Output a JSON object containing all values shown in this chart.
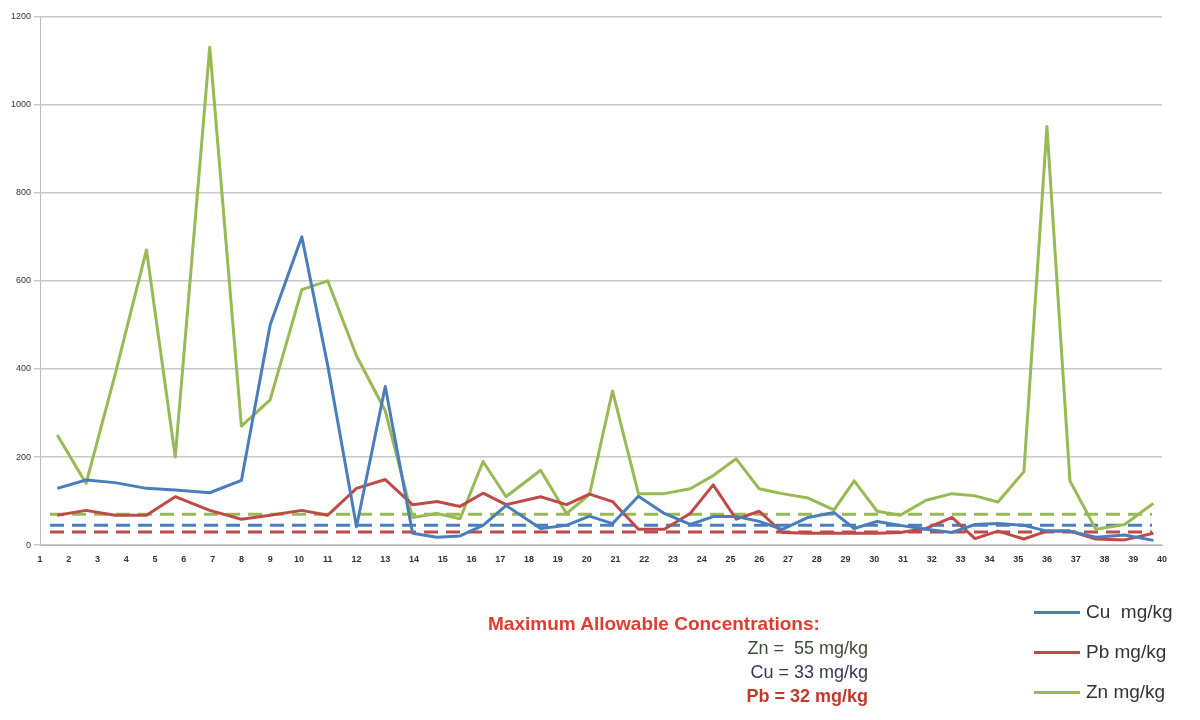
{
  "chart_data": {
    "type": "line",
    "x": [
      1.6,
      2.6,
      3.6,
      4.7,
      5.7,
      6.9,
      8.0,
      9.0,
      10.1,
      11.0,
      12.0,
      13.0,
      13.95,
      14.8,
      15.6,
      16.4,
      17.2,
      18.4,
      19.3,
      20.1,
      20.9,
      21.8,
      22.7,
      23.6,
      24.4,
      25.2,
      26.0,
      26.8,
      27.7,
      28.6,
      29.3,
      30.1,
      30.9,
      31.8,
      32.7,
      33.5,
      34.3,
      35.2,
      36.0,
      36.8,
      37.7,
      38.7,
      39.7
    ],
    "series": [
      {
        "name": "Cu  mg/kg",
        "color": "#4a7ebb",
        "values": [
          129,
          148,
          142,
          129,
          125,
          119,
          147,
          500,
          700,
          408,
          42,
          360,
          27,
          18,
          21,
          45,
          90,
          38,
          45,
          66,
          49,
          111,
          72,
          47,
          65,
          65,
          54,
          36,
          63,
          74,
          38,
          54,
          45,
          36,
          29,
          47,
          49,
          45,
          32,
          32,
          18,
          23,
          11
        ]
      },
      {
        "name": "Pb mg/kg",
        "color": "#be4b48",
        "values": [
          68,
          79,
          68,
          68,
          110,
          79,
          59,
          68,
          79,
          68,
          129,
          149,
          92,
          99,
          88,
          118,
          92,
          110,
          92,
          116,
          99,
          36,
          36,
          72,
          137,
          59,
          77,
          29,
          27,
          27,
          27,
          27,
          29,
          38,
          63,
          15,
          32,
          14,
          32,
          32,
          14,
          12,
          27
        ]
      },
      {
        "name": "Zn mg/kg",
        "color": "#98b954",
        "values": [
          250,
          140,
          385,
          670,
          200,
          1130,
          270,
          330,
          580,
          600,
          430,
          305,
          63,
          72,
          60,
          190,
          110,
          170,
          72,
          115,
          350,
          117,
          117,
          128,
          158,
          196,
          128,
          117,
          107,
          80,
          146,
          77,
          68,
          102,
          117,
          112,
          98,
          167,
          950,
          146,
          36,
          47,
          95
        ]
      }
    ],
    "xlim": [
      1,
      40
    ],
    "xticks": [
      1,
      2,
      3,
      4,
      5,
      6,
      7,
      8,
      9,
      10,
      11,
      12,
      13,
      14,
      15,
      16,
      17,
      18,
      19,
      20,
      21,
      22,
      23,
      24,
      25,
      26,
      27,
      28,
      29,
      30,
      31,
      32,
      33,
      34,
      35,
      36,
      37,
      38,
      39,
      40
    ],
    "ylim": [
      0,
      1200
    ],
    "yticks": [
      0,
      200,
      400,
      600,
      800,
      1000,
      1200
    ],
    "ref_lines": [
      {
        "axis": "y",
        "value": 70,
        "color": "#98b954",
        "line_style": "dashed"
      },
      {
        "axis": "y",
        "value": 45,
        "color": "#4a7ebb",
        "line_style": "dashed"
      },
      {
        "axis": "y",
        "value": 30,
        "color": "#be4b48",
        "line_style": "dashed"
      }
    ],
    "annotations": [
      "Maximum Allowable Concentrations:",
      "Zn =  55 mg/kg",
      "Cu = 33 mg/kg",
      "Pb = 32 mg/kg"
    ],
    "grid": "y",
    "legend": "bottom right",
    "marker": "none",
    "line_style": "solid"
  }
}
